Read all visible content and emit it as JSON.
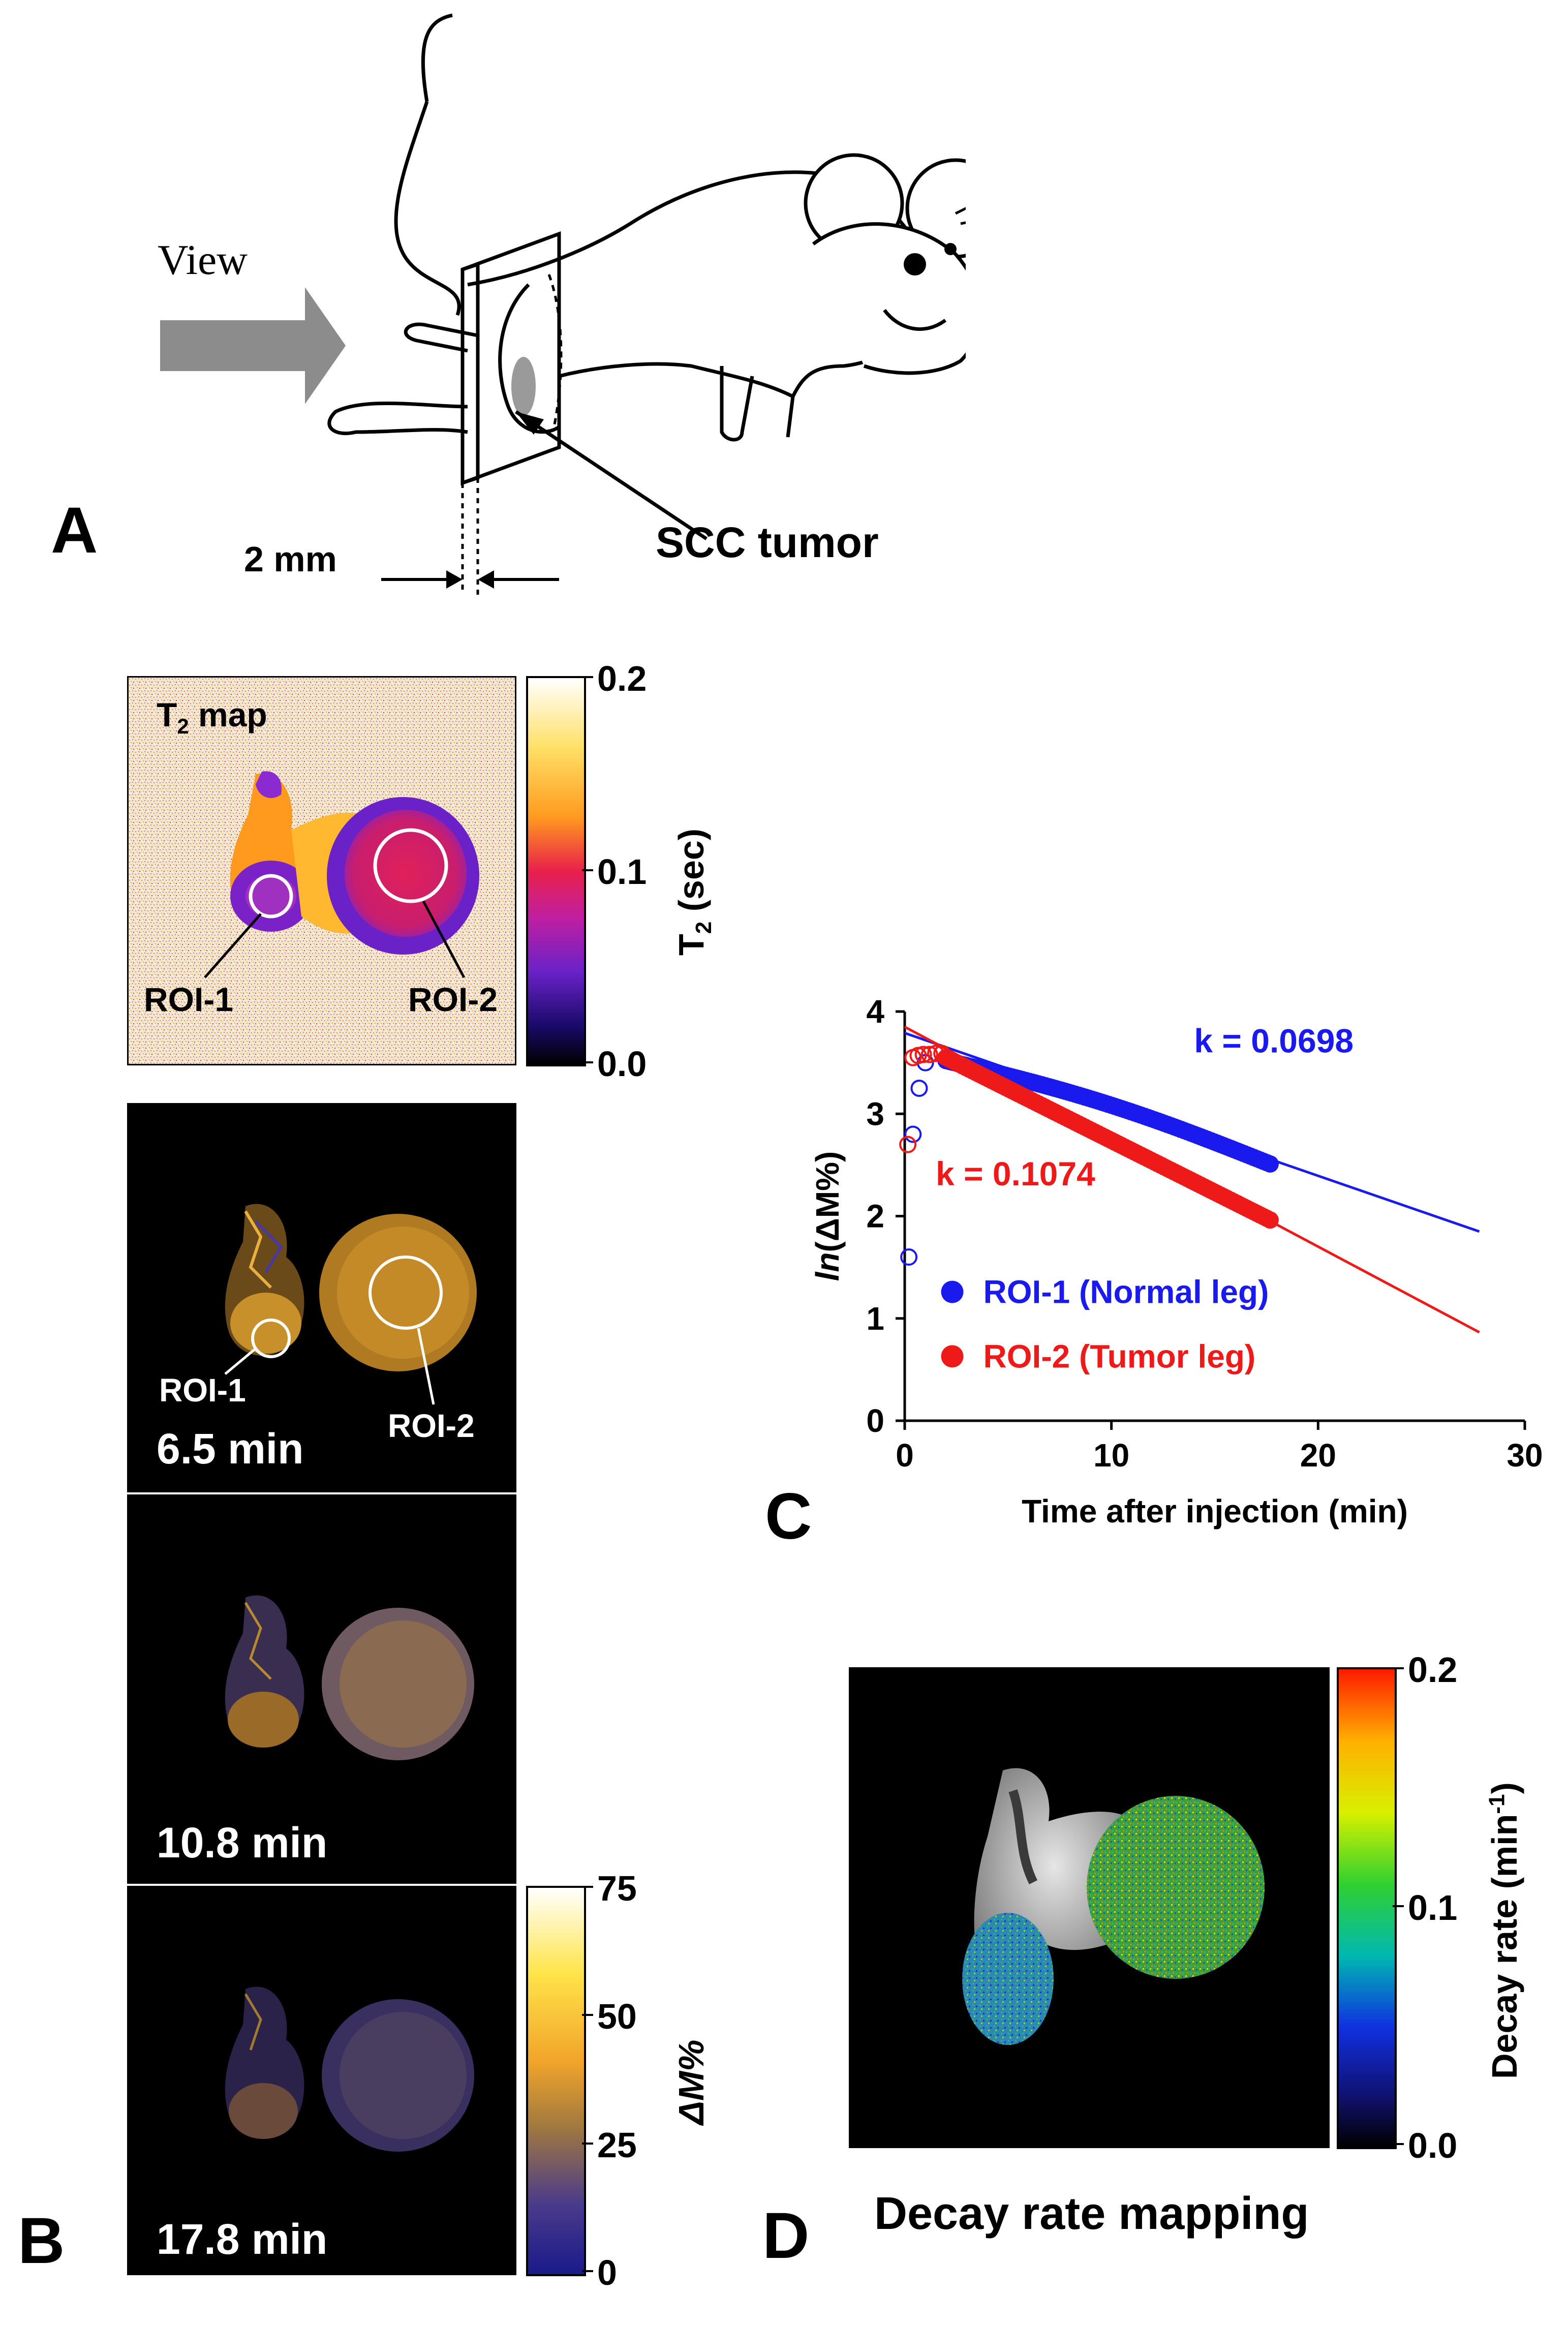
{
  "panels": {
    "a": "A",
    "b": "B",
    "c": "C",
    "d": "D"
  },
  "panel_a": {
    "view_label": "View",
    "tumor_label": "SCC tumor",
    "thickness_label": "2 mm"
  },
  "t2_map": {
    "title_main": "T",
    "title_sub": "2",
    "title_rest": " map",
    "roi1": "ROI-1",
    "roi2": "ROI-2",
    "colorbar": {
      "ticks": [
        "0.2",
        "0.1",
        "0.0"
      ],
      "label_main": "T",
      "label_sub": "2",
      "label_rest": " (sec)",
      "colors": [
        "#ffffff",
        "#ffe066",
        "#ff9a1f",
        "#e8204a",
        "#c01fa0",
        "#6a22c8",
        "#1a0a6a",
        "#000000"
      ]
    }
  },
  "dm_images": [
    {
      "time": "6.5 min",
      "roi1": "ROI-1",
      "roi2": "ROI-2"
    },
    {
      "time": "10.8 min"
    },
    {
      "time": "17.8 min"
    }
  ],
  "dm_colorbar": {
    "ticks": [
      "75",
      "50",
      "25",
      "0"
    ],
    "label": "ΔM%",
    "colors": [
      "#ffffff",
      "#ffe44a",
      "#f1a42a",
      "#7a5a9a",
      "#1a1a8a"
    ]
  },
  "decay_map": {
    "caption": "Decay rate mapping",
    "colorbar": {
      "ticks": [
        "0.2",
        "0.1",
        "0.0"
      ],
      "label_main": "Decay rate (min",
      "label_sup": "-1",
      "label_end": ")",
      "colors": [
        "#ff1a00",
        "#ffb000",
        "#d8f000",
        "#30d030",
        "#00b8b0",
        "#1030e0",
        "#10106a",
        "#000000"
      ]
    }
  },
  "chart_data": {
    "type": "scatter",
    "xlabel": "Time after injection (min)",
    "ylabel_italic": "ln",
    "ylabel_rest": "(ΔM%)",
    "xlim": [
      0,
      30
    ],
    "ylim": [
      0,
      4
    ],
    "xticks": [
      "0",
      "10",
      "20",
      "30"
    ],
    "yticks": [
      "0",
      "1",
      "2",
      "3",
      "4"
    ],
    "series": [
      {
        "name": "ROI-1 (Normal leg)",
        "color": "#1a1aee",
        "fit_label": "k = 0.0698",
        "fit": {
          "intercept": 3.79,
          "slope": -0.0698,
          "x_end": 27.8
        },
        "points_open": [
          [
            0.2,
            1.6
          ],
          [
            0.4,
            2.8
          ],
          [
            0.7,
            3.25
          ],
          [
            1.0,
            3.5
          ]
        ]
      },
      {
        "name": "ROI-2 (Tumor leg)",
        "color": "#ee1a1a",
        "fit_label": "k = 0.1074",
        "fit": {
          "intercept": 3.85,
          "slope": -0.1074,
          "x_end": 27.8
        },
        "points_open": [
          [
            0.15,
            2.7
          ],
          [
            0.4,
            3.55
          ],
          [
            0.65,
            3.57
          ],
          [
            0.9,
            3.58
          ],
          [
            1.2,
            3.58
          ],
          [
            1.5,
            3.59
          ],
          [
            1.8,
            3.59
          ]
        ]
      }
    ]
  }
}
